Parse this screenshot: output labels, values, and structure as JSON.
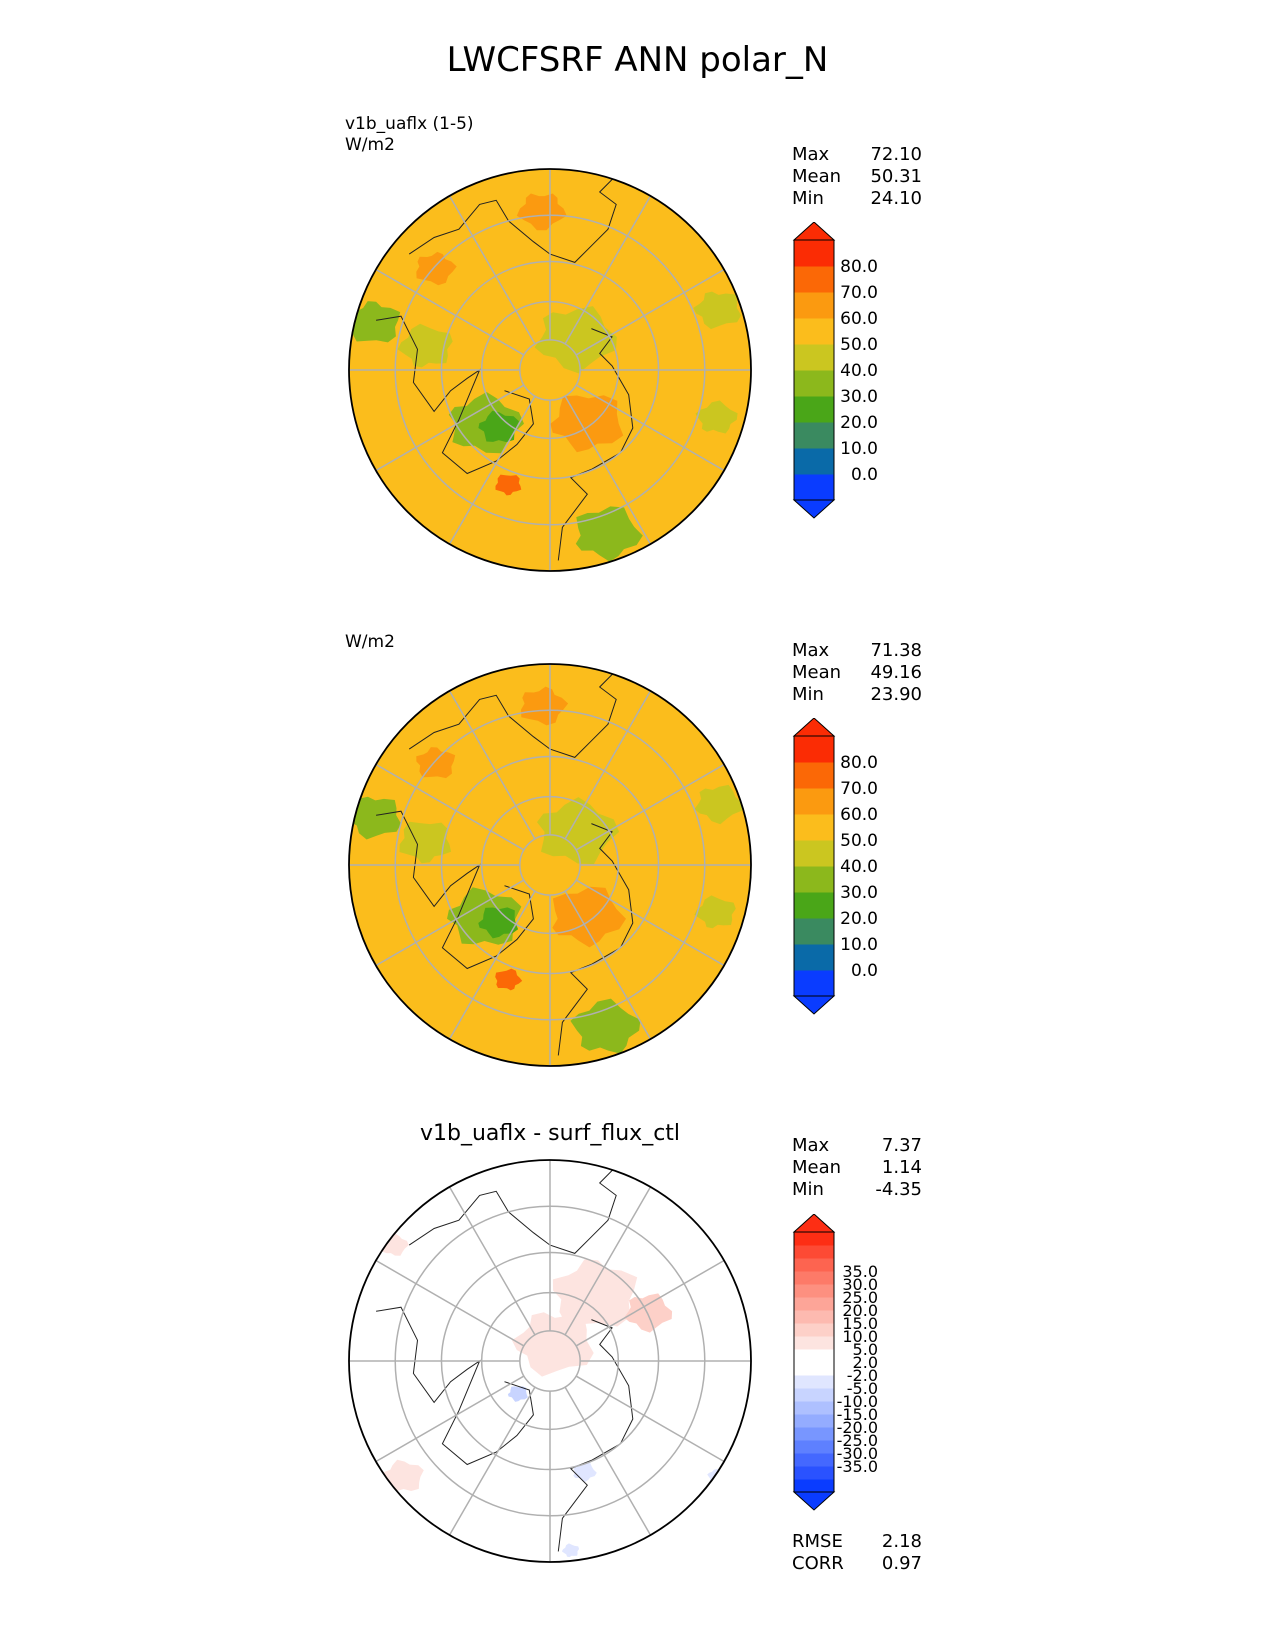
{
  "title": "LWCFSRF ANN polar_N",
  "panels": [
    {
      "id": "test",
      "subtitle_lines": [
        "v1b_uaflx (1-5)",
        "W/m2"
      ],
      "heading": "",
      "stats": [
        {
          "label": "Max",
          "value": "72.10"
        },
        {
          "label": "Mean",
          "value": "50.31"
        },
        {
          "label": "Min",
          "value": "24.10"
        }
      ],
      "colorbar": {
        "colors": [
          "#0a3cff",
          "#0a6aa8",
          "#3a8a60",
          "#4aa618",
          "#8cb81c",
          "#cbc620",
          "#fbbd1c",
          "#fb9a10",
          "#fb6806",
          "#fb2c04"
        ],
        "ticks": [
          "0.0",
          "10.0",
          "20.0",
          "30.0",
          "40.0",
          "50.0",
          "60.0",
          "70.0",
          "80.0"
        ]
      },
      "base_color": "#fbbd1c"
    },
    {
      "id": "reference",
      "subtitle_lines": [
        "W/m2"
      ],
      "heading": "",
      "stats": [
        {
          "label": "Max",
          "value": "71.38"
        },
        {
          "label": "Mean",
          "value": "49.16"
        },
        {
          "label": "Min",
          "value": "23.90"
        }
      ],
      "colorbar": {
        "colors": [
          "#0a3cff",
          "#0a6aa8",
          "#3a8a60",
          "#4aa618",
          "#8cb81c",
          "#cbc620",
          "#fbbd1c",
          "#fb9a10",
          "#fb6806",
          "#fb2c04"
        ],
        "ticks": [
          "0.0",
          "10.0",
          "20.0",
          "30.0",
          "40.0",
          "50.0",
          "60.0",
          "70.0",
          "80.0"
        ]
      },
      "base_color": "#fbbd1c"
    },
    {
      "id": "difference",
      "subtitle_lines": [],
      "heading": "v1b_uaflx - surf_flux_ctl",
      "stats": [
        {
          "label": "Max",
          "value": "7.37"
        },
        {
          "label": "Mean",
          "value": "1.14"
        },
        {
          "label": "Min",
          "value": "-4.35"
        }
      ],
      "extra_stats": [
        {
          "label": "RMSE",
          "value": "2.18"
        },
        {
          "label": "CORR",
          "value": "0.97"
        }
      ],
      "colorbar": {
        "colors": [
          "#0a3cff",
          "#2a52ff",
          "#4468ff",
          "#5e80ff",
          "#7896ff",
          "#94acff",
          "#aec0ff",
          "#c8d4ff",
          "#e0e6ff",
          "#ffffff",
          "#ffffff",
          "#fde4e0",
          "#fdd0c8",
          "#fdbab0",
          "#fda598",
          "#fd9080",
          "#fd7a68",
          "#fd6450",
          "#fd4a34",
          "#fd2e14"
        ],
        "ticks": [
          "-35.0",
          "-30.0",
          "-25.0",
          "-20.0",
          "-15.0",
          "-10.0",
          "-5.0",
          "-2.0",
          "2.0",
          "5.0",
          "10.0",
          "15.0",
          "20.0",
          "25.0",
          "30.0",
          "35.0"
        ]
      },
      "base_color": "#ffffff"
    }
  ],
  "chart_data": [
    {
      "type": "heatmap",
      "title": "LWCFSRF ANN polar_N",
      "subtitle": "v1b_uaflx (1-5)",
      "units": "W/m2",
      "projection": "north polar stereographic",
      "stats": {
        "max": 72.1,
        "mean": 50.31,
        "min": 24.1
      },
      "colorbar_levels": [
        0,
        10,
        20,
        30,
        40,
        50,
        60,
        70,
        80
      ]
    },
    {
      "type": "heatmap",
      "title": "",
      "units": "W/m2",
      "projection": "north polar stereographic",
      "stats": {
        "max": 71.38,
        "mean": 49.16,
        "min": 23.9
      },
      "colorbar_levels": [
        0,
        10,
        20,
        30,
        40,
        50,
        60,
        70,
        80
      ]
    },
    {
      "type": "heatmap",
      "title": "v1b_uaflx - surf_flux_ctl",
      "projection": "north polar stereographic",
      "stats": {
        "max": 7.37,
        "mean": 1.14,
        "min": -4.35,
        "rmse": 2.18,
        "corr": 0.97
      },
      "colorbar_levels": [
        -35,
        -30,
        -25,
        -20,
        -15,
        -10,
        -5,
        -2,
        2,
        5,
        10,
        15,
        20,
        25,
        30,
        35
      ]
    }
  ]
}
